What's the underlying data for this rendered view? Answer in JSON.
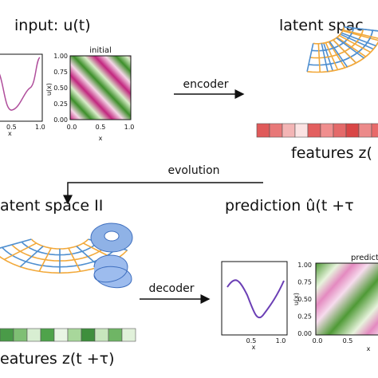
{
  "top": {
    "input_title": "input: u(t)",
    "line_xticks": [
      "0.5",
      "1.0"
    ],
    "line_xlabel": "x",
    "heatmap_title": "initial",
    "heatmap_ylabel": "u(x)",
    "heatmap_yticks": [
      "1.00",
      "0.75",
      "0.50",
      "0.25",
      "0.00"
    ],
    "heatmap_xticks": [
      "0.0",
      "0.5",
      "1.0"
    ],
    "heatmap_xlabel": "x",
    "encoder": "encoder",
    "latent_title": "latent spac",
    "features": "features z("
  },
  "evolution": "evolution",
  "bottom": {
    "latent_title": "atent space II",
    "decoder": "decoder",
    "prediction_title": "prediction û(t +τ",
    "line_xticks": [
      "0.5",
      "1.0"
    ],
    "line_xlabel": "x",
    "heatmap_title": "predict",
    "heatmap_ylabel": "u(x)",
    "heatmap_yticks": [
      "1.00",
      "0.75",
      "0.50",
      "0.25",
      "0.00"
    ],
    "heatmap_xticks": [
      "0.0",
      "0.5"
    ],
    "heatmap_xlabel": "x",
    "features": "eatures z(t +τ)"
  }
}
